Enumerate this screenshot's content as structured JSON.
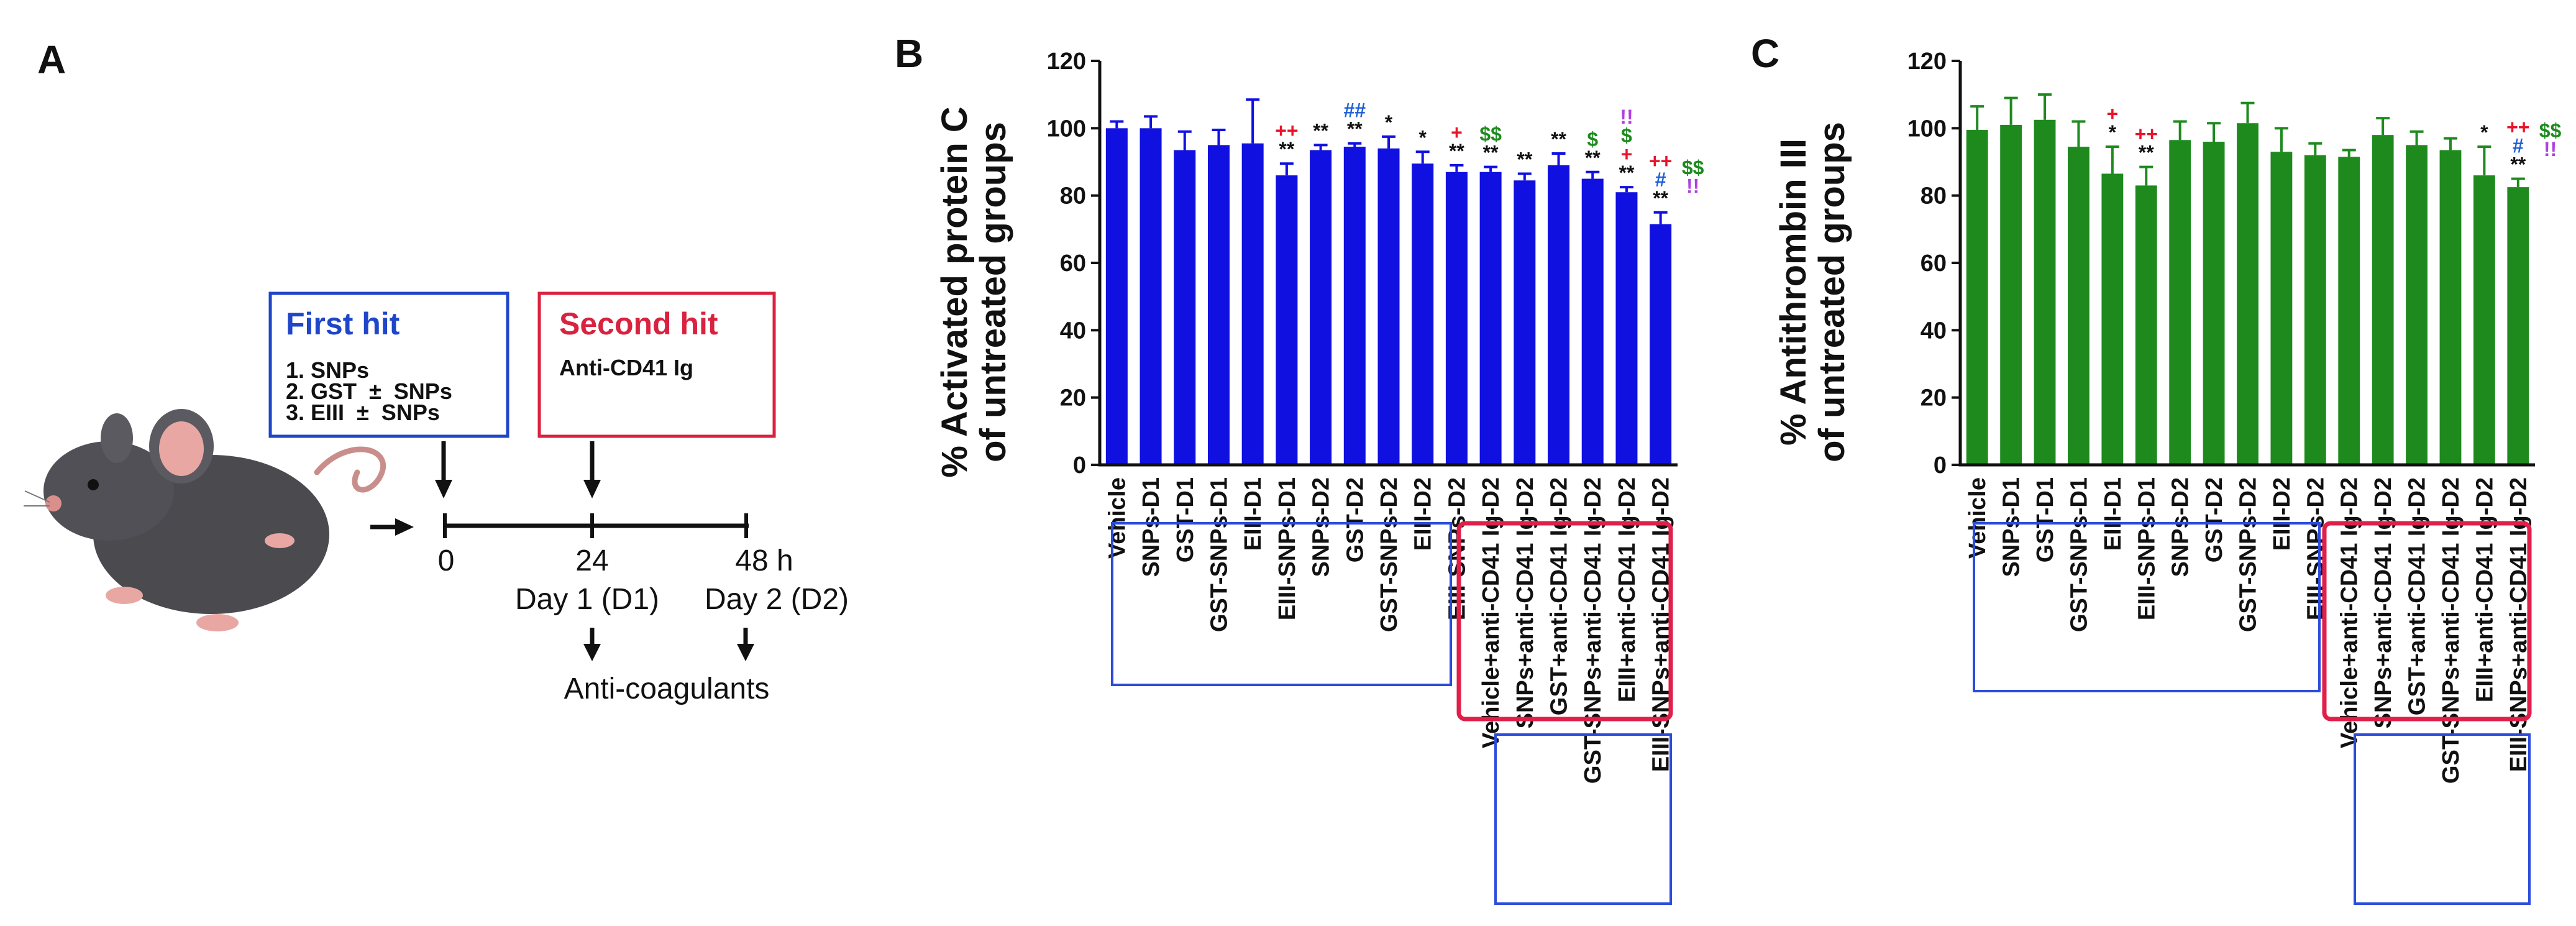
{
  "panels": {
    "a": "A",
    "b": "B",
    "c": "C"
  },
  "schematic": {
    "first_hit": {
      "title": "First hit",
      "lines": [
        "1. SNPs",
        "2. GST  ±  SNPs",
        "3. EIII  ±  SNPs"
      ]
    },
    "second_hit": {
      "title": "Second hit",
      "lines": [
        "Anti-CD41 Ig"
      ]
    },
    "timeline": {
      "t0": "0",
      "t24": "24",
      "t48": "48 h",
      "day1": "Day 1 (D1)",
      "day2": "Day 2 (D2)",
      "outcome": "Anti-coagulants"
    },
    "colors": {
      "first": "#1f45c9",
      "second": "#d9223f",
      "mouse": "#4a4a4f",
      "ear": "#e8a7a3"
    }
  },
  "chart_data": [
    {
      "type": "bar",
      "panel": "B",
      "ylabel_lines": [
        "% Activated protein C",
        "of untreated groups"
      ],
      "ylim": [
        0,
        120
      ],
      "yticks": [
        "0",
        "20",
        "40",
        "60",
        "80",
        "100",
        "120"
      ],
      "color": "#1010e0",
      "categories": [
        "Vehicle",
        "SNPs-D1",
        "GST-D1",
        "GST-SNPs-D1",
        "EIII-D1",
        "EIII-SNPs-D1",
        "SNPs-D2",
        "GST-D2",
        "GST-SNPs-D2",
        "EIII-D2",
        "EIII-SNPs-D2",
        "Vehicle+anti-CD41 Ig-D2",
        "SNPs+anti-CD41 Ig-D2",
        "GST+anti-CD41 Ig-D2",
        "GST-SNPs+anti-CD41 Ig-D2",
        "EIII+anti-CD41 Ig-D2",
        "EIII-SNPs+anti-CD41 Ig-D2"
      ],
      "values": [
        100,
        100,
        93.5,
        95,
        95.5,
        86,
        93.5,
        94.5,
        94,
        89.5,
        87,
        87,
        84.5,
        89,
        85,
        81,
        71.5
      ],
      "errors": [
        2,
        3.5,
        5.5,
        4.5,
        13,
        3.5,
        1.5,
        1,
        3.5,
        3.5,
        2,
        1.5,
        2,
        3.5,
        2,
        1.5,
        3.5
      ],
      "annotations": [
        {
          "bar": 5,
          "text": "**",
          "color": "#111111",
          "level": 0
        },
        {
          "bar": 5,
          "text": "++",
          "color": "#e8142b",
          "level": 1
        },
        {
          "bar": 6,
          "text": "**",
          "color": "#111111",
          "level": 0
        },
        {
          "bar": 7,
          "text": "**",
          "color": "#111111",
          "level": 0
        },
        {
          "bar": 7,
          "text": "##",
          "color": "#1f5fd6",
          "level": 1
        },
        {
          "bar": 8,
          "text": "*",
          "color": "#111111",
          "level": 0
        },
        {
          "bar": 9,
          "text": "*",
          "color": "#111111",
          "level": 0
        },
        {
          "bar": 10,
          "text": "**",
          "color": "#111111",
          "level": 0
        },
        {
          "bar": 10,
          "text": "+",
          "color": "#e8142b",
          "level": 1
        },
        {
          "bar": 11,
          "text": "**",
          "color": "#111111",
          "level": 0
        },
        {
          "bar": 11,
          "text": "$$",
          "color": "#1d8a1d",
          "level": 1
        },
        {
          "bar": 12,
          "text": "**",
          "color": "#111111",
          "level": 0
        },
        {
          "bar": 13,
          "text": "**",
          "color": "#111111",
          "level": 0
        },
        {
          "bar": 14,
          "text": "**",
          "color": "#111111",
          "level": 0
        },
        {
          "bar": 14,
          "text": "$",
          "color": "#1d8a1d",
          "level": 1
        },
        {
          "bar": 15,
          "text": "**",
          "color": "#111111",
          "level": 0
        },
        {
          "bar": 15,
          "text": "+",
          "color": "#e8142b",
          "level": 1
        },
        {
          "bar": 15,
          "text": "$",
          "color": "#1d8a1d",
          "level": 2
        },
        {
          "bar": 15,
          "text": "!!",
          "color": "#b040e0",
          "level": 3
        },
        {
          "bar": 16,
          "text": "**",
          "color": "#111111",
          "level": 0
        },
        {
          "bar": 16,
          "text": "#",
          "color": "#1f5fd6",
          "level": 1
        },
        {
          "bar": 16,
          "text": "++",
          "color": "#e8142b",
          "level": 2
        },
        {
          "bar": 16,
          "text": "$$",
          "color": "#1d8a1d",
          "level": 2,
          "dx": 1
        },
        {
          "bar": 16,
          "text": "!!",
          "color": "#b040e0",
          "level": 1,
          "dx": 1
        }
      ]
    },
    {
      "type": "bar",
      "panel": "C",
      "ylabel_lines": [
        "% Antithrombin III",
        "of untreated groups"
      ],
      "ylim": [
        0,
        120
      ],
      "yticks": [
        "0",
        "20",
        "40",
        "60",
        "80",
        "100",
        "120"
      ],
      "color": "#1e8a1e",
      "categories": [
        "Vehicle",
        "SNPs-D1",
        "GST-D1",
        "GST-SNPs-D1",
        "EIII-D1",
        "EIII-SNPs-D1",
        "SNPs-D2",
        "GST-D2",
        "GST-SNPs-D2",
        "EIII-D2",
        "EIII-SNPs-D2",
        "Vehicle+anti-CD41 Ig-D2",
        "SNPs+anti-CD41 Ig-D2",
        "GST+anti-CD41 Ig-D2",
        "GST-SNPs+anti-CD41 Ig-D2",
        "EIII+anti-CD41 Ig-D2",
        "EIII-SNPs+anti-CD41 Ig-D2"
      ],
      "values": [
        99.5,
        101,
        102.5,
        94.5,
        86.5,
        83,
        96.5,
        96,
        101.5,
        93,
        92,
        91.5,
        98,
        95,
        93.5,
        86,
        82.5
      ],
      "errors": [
        7,
        8,
        7.5,
        7.5,
        8,
        5.5,
        5.5,
        5.5,
        6,
        7,
        3.5,
        2,
        5,
        4,
        3.5,
        8.5,
        2.5
      ],
      "annotations": [
        {
          "bar": 4,
          "text": "*",
          "color": "#111111",
          "level": 0
        },
        {
          "bar": 4,
          "text": "+",
          "color": "#e8142b",
          "level": 1
        },
        {
          "bar": 5,
          "text": "**",
          "color": "#111111",
          "level": 0
        },
        {
          "bar": 5,
          "text": "++",
          "color": "#e8142b",
          "level": 1
        },
        {
          "bar": 15,
          "text": "*",
          "color": "#111111",
          "level": 0
        },
        {
          "bar": 16,
          "text": "**",
          "color": "#111111",
          "level": 0
        },
        {
          "bar": 16,
          "text": "#",
          "color": "#1f5fd6",
          "level": 1
        },
        {
          "bar": 16,
          "text": "++",
          "color": "#e8142b",
          "level": 2
        },
        {
          "bar": 16,
          "text": "$$",
          "color": "#1d8a1d",
          "level": 2,
          "dx": 1
        },
        {
          "bar": 16,
          "text": "!!",
          "color": "#b040e0",
          "level": 1,
          "dx": 1
        }
      ]
    }
  ]
}
